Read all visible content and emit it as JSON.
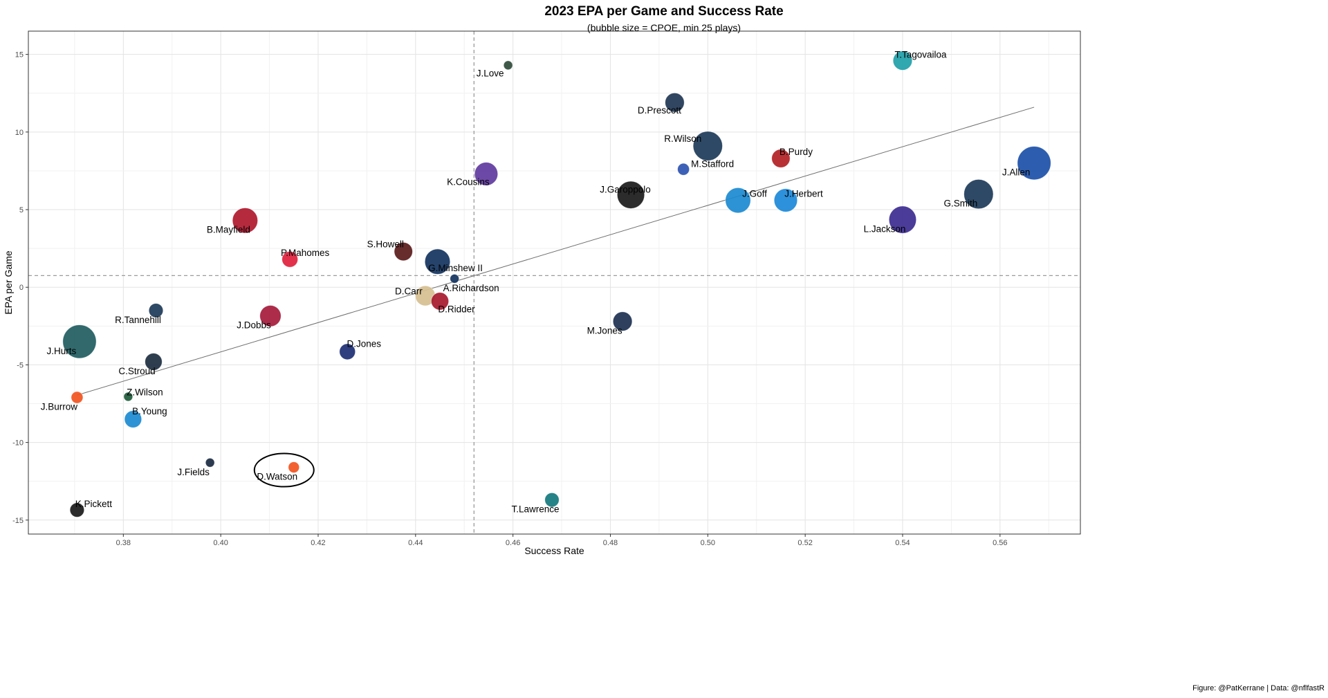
{
  "chart_data": {
    "type": "scatter",
    "title": "2023 EPA per Game and Success Rate",
    "subtitle": "(bubble size = CPOE, min 25 plays)",
    "xlabel": "Success Rate",
    "ylabel": "EPA per Game",
    "caption": "Figure: @PatKerrane | Data: @nflfastR",
    "xlim": [
      0.3605,
      0.5765
    ],
    "ylim": [
      -15.9,
      16.5
    ],
    "x_ticks": [
      0.38,
      0.4,
      0.42,
      0.44,
      0.46,
      0.48,
      0.5,
      0.52,
      0.54,
      0.56
    ],
    "x_tick_labels": [
      "0.38",
      "0.40",
      "0.42",
      "0.44",
      "0.46",
      "0.48",
      "0.50",
      "0.52",
      "0.54",
      "0.56"
    ],
    "y_ticks": [
      -15,
      -10,
      -5,
      0,
      5,
      10,
      15
    ],
    "y_tick_labels": [
      "-15",
      "-10",
      "-5",
      "0",
      "5",
      "10",
      "15"
    ],
    "grid": true,
    "reference_lines": {
      "x_mean": 0.452,
      "y_mean": 0.75
    },
    "trend_line": {
      "x": [
        0.3705,
        0.567
      ],
      "y": [
        -6.95,
        11.6
      ]
    },
    "highlight": "D.Watson",
    "points": [
      {
        "name": "T.Tagovailoa",
        "x": 0.54,
        "y": 14.6,
        "cpoe": 3.0,
        "color": "#20a0a8"
      },
      {
        "name": "J.Love",
        "x": 0.459,
        "y": 14.3,
        "cpoe": 0.5,
        "color": "#2f4b3a"
      },
      {
        "name": "D.Prescott",
        "x": 0.4932,
        "y": 11.9,
        "cpoe": 3.0,
        "color": "#1f3652"
      },
      {
        "name": "R.Wilson",
        "x": 0.5,
        "y": 9.1,
        "cpoe": 5.5,
        "color": "#1c3a58"
      },
      {
        "name": "B.Purdy",
        "x": 0.515,
        "y": 8.3,
        "cpoe": 2.8,
        "color": "#b21f24"
      },
      {
        "name": "M.Stafford",
        "x": 0.495,
        "y": 7.6,
        "cpoe": 1.2,
        "color": "#2c54b0"
      },
      {
        "name": "J.Allen",
        "x": 0.567,
        "y": 8.0,
        "cpoe": 6.5,
        "color": "#1b4fa8"
      },
      {
        "name": "K.Cousins",
        "x": 0.4545,
        "y": 7.3,
        "cpoe": 4.0,
        "color": "#5f3a9e"
      },
      {
        "name": "J.Garoppolo",
        "x": 0.4842,
        "y": 5.95,
        "cpoe": 5.0,
        "color": "#1a1a1a"
      },
      {
        "name": "J.Goff",
        "x": 0.5062,
        "y": 5.6,
        "cpoe": 4.5,
        "color": "#1b8ad0"
      },
      {
        "name": "J.Herbert",
        "x": 0.516,
        "y": 5.6,
        "cpoe": 4.0,
        "color": "#1b88d8"
      },
      {
        "name": "G.Smith",
        "x": 0.5556,
        "y": 6.0,
        "cpoe": 5.5,
        "color": "#1c3a58"
      },
      {
        "name": "L.Jackson",
        "x": 0.54,
        "y": 4.35,
        "cpoe": 5.0,
        "color": "#3b2b8f"
      },
      {
        "name": "B.Mayfield",
        "x": 0.405,
        "y": 4.3,
        "cpoe": 4.5,
        "color": "#b0182d"
      },
      {
        "name": "P.Mahomes",
        "x": 0.4142,
        "y": 1.8,
        "cpoe": 2.2,
        "color": "#e0203c"
      },
      {
        "name": "S.Howell",
        "x": 0.4375,
        "y": 2.3,
        "cpoe": 2.8,
        "color": "#5a1a1a"
      },
      {
        "name": "G.Minshew II",
        "x": 0.4445,
        "y": 1.65,
        "cpoe": 4.5,
        "color": "#12335e"
      },
      {
        "name": "A.Richardson",
        "x": 0.448,
        "y": 0.55,
        "cpoe": 0.5,
        "color": "#12335e"
      },
      {
        "name": "D.Carr",
        "x": 0.442,
        "y": -0.55,
        "cpoe": 3.2,
        "color": "#d6bf90"
      },
      {
        "name": "D.Ridder",
        "x": 0.445,
        "y": -0.9,
        "cpoe": 2.6,
        "color": "#a7182d"
      },
      {
        "name": "R.Tannehill",
        "x": 0.3867,
        "y": -1.5,
        "cpoe": 1.8,
        "color": "#1c3a58"
      },
      {
        "name": "J.Dobbs",
        "x": 0.4102,
        "y": -1.85,
        "cpoe": 3.5,
        "color": "#a51a3b"
      },
      {
        "name": "M.Jones",
        "x": 0.4825,
        "y": -2.2,
        "cpoe": 3.0,
        "color": "#1c3050"
      },
      {
        "name": "J.Hurts",
        "x": 0.371,
        "y": -3.5,
        "cpoe": 6.5,
        "color": "#1f5c5f"
      },
      {
        "name": "D.Jones",
        "x": 0.426,
        "y": -4.15,
        "cpoe": 2.2,
        "color": "#1c2e73"
      },
      {
        "name": "C.Stroud",
        "x": 0.3862,
        "y": -4.8,
        "cpoe": 2.5,
        "color": "#1c2e40"
      },
      {
        "name": "J.Burrow",
        "x": 0.3705,
        "y": -7.1,
        "cpoe": 1.2,
        "color": "#f2521e"
      },
      {
        "name": "Z.Wilson",
        "x": 0.381,
        "y": -7.05,
        "cpoe": 0.5,
        "color": "#1e5a3a"
      },
      {
        "name": "B.Young",
        "x": 0.382,
        "y": -8.5,
        "cpoe": 2.5,
        "color": "#1b8ad0"
      },
      {
        "name": "J.Fields",
        "x": 0.3978,
        "y": -11.3,
        "cpoe": 0.5,
        "color": "#1a2a40"
      },
      {
        "name": "D.Watson",
        "x": 0.415,
        "y": -11.6,
        "cpoe": 1.0,
        "color": "#f2521e"
      },
      {
        "name": "T.Lawrence",
        "x": 0.468,
        "y": -13.7,
        "cpoe": 1.8,
        "color": "#13787e"
      },
      {
        "name": "K.Pickett",
        "x": 0.3705,
        "y": -14.35,
        "cpoe": 1.8,
        "color": "#1a1a1a"
      }
    ]
  }
}
